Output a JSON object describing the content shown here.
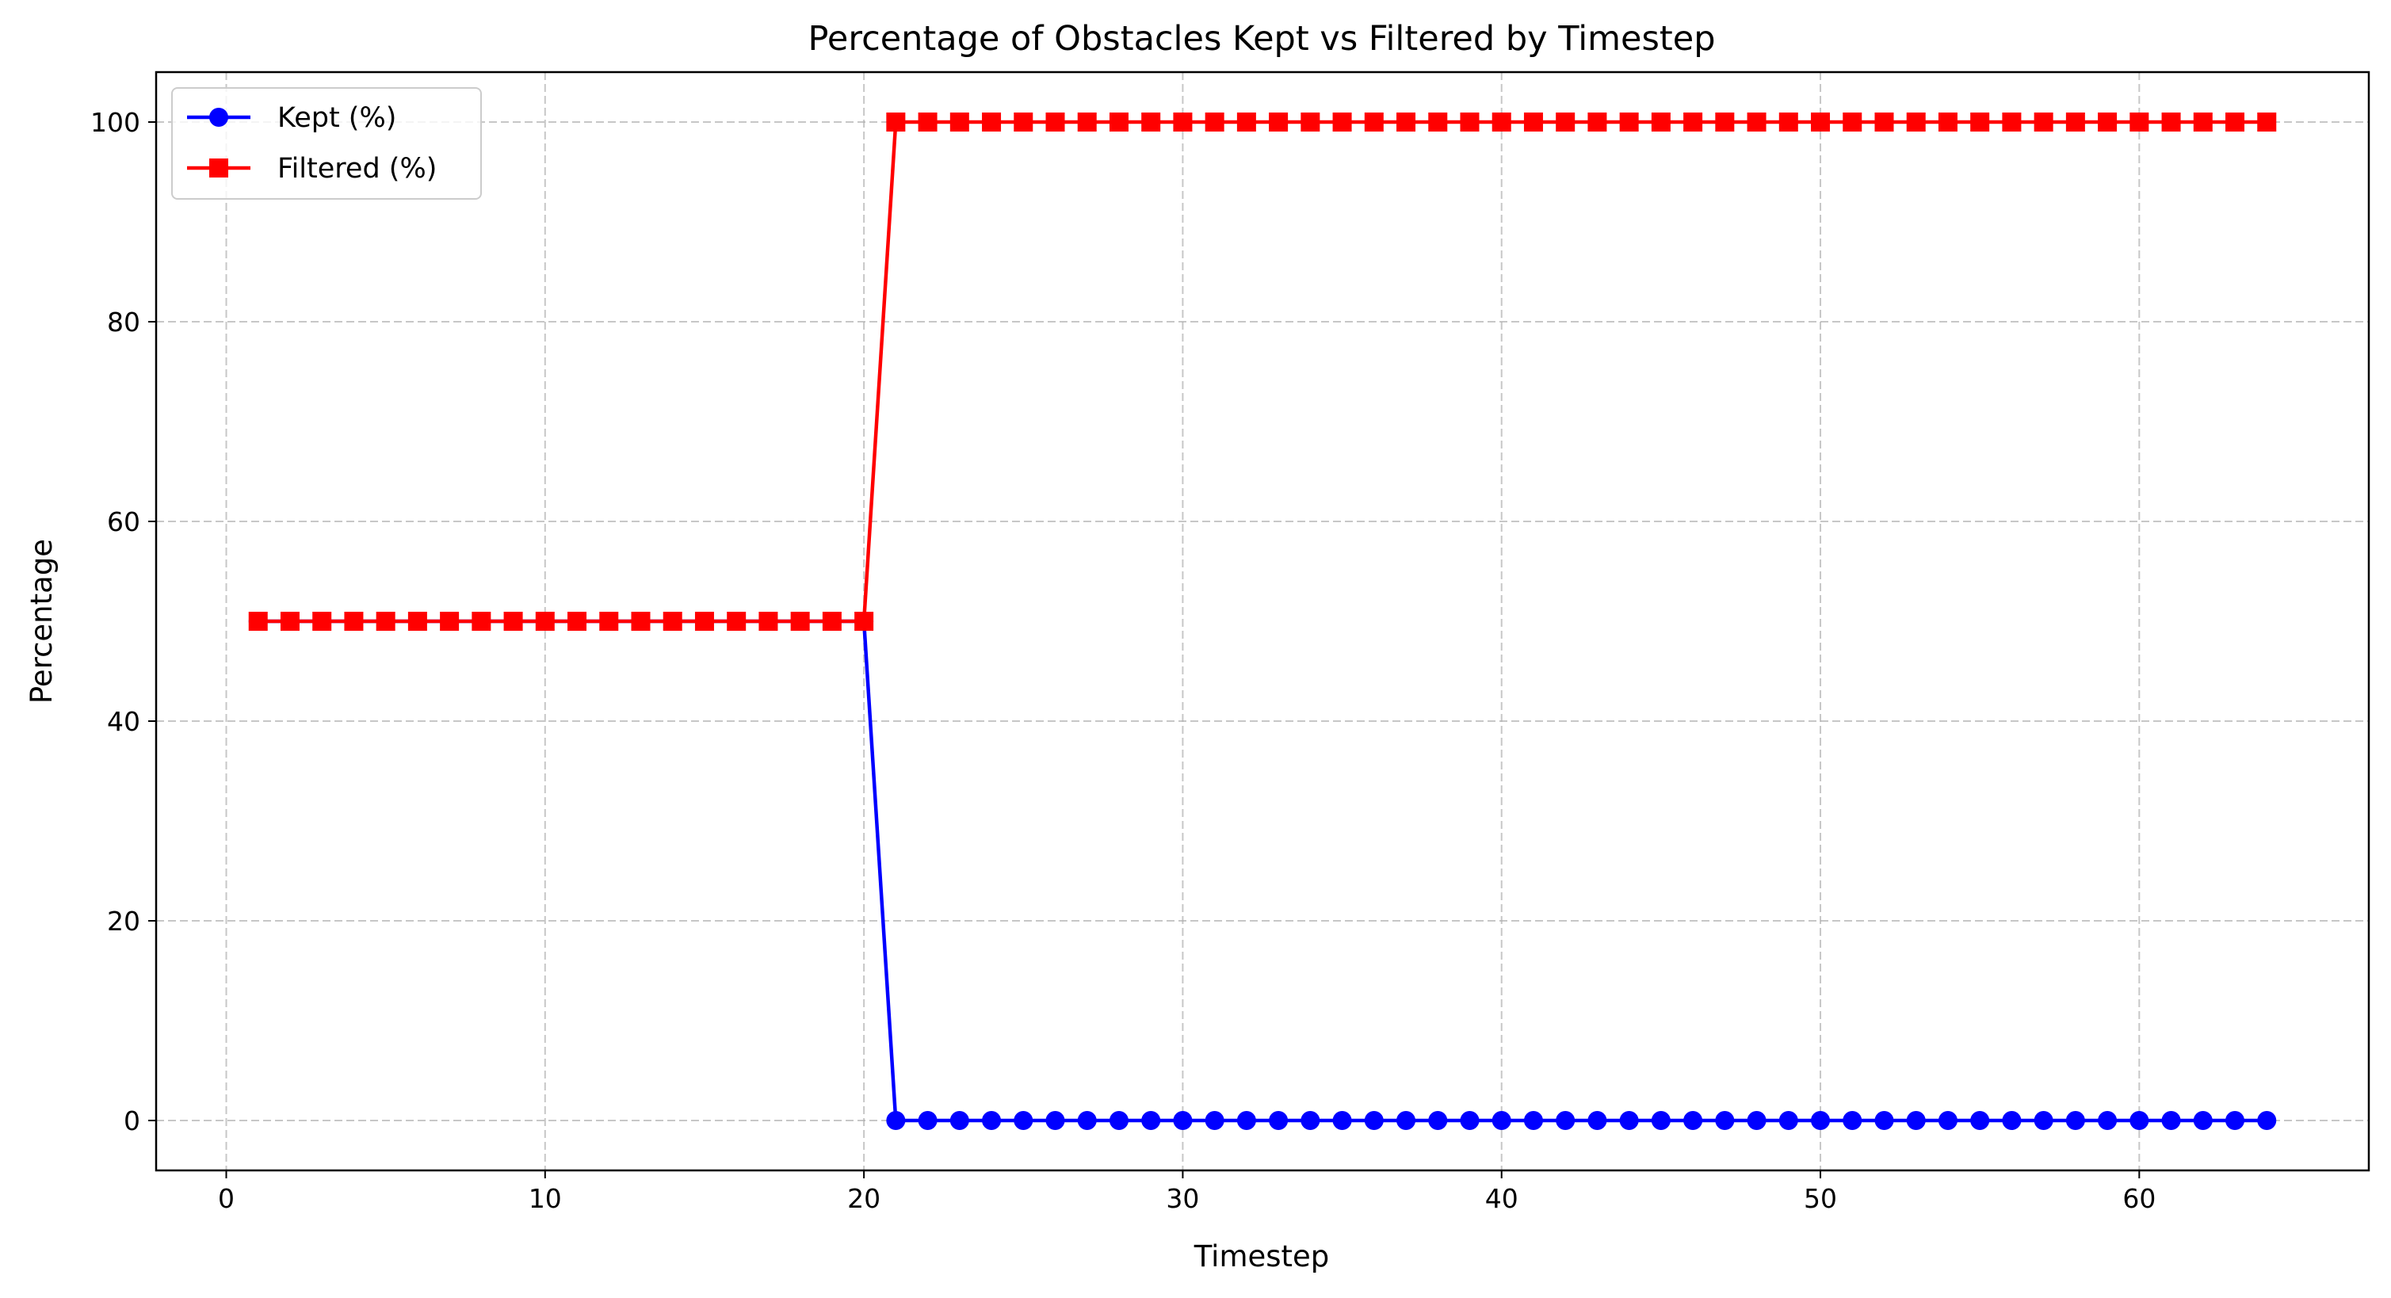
{
  "chart_data": {
    "type": "line",
    "title": "Percentage of Obstacles Kept vs Filtered by Timestep",
    "xlabel": "Timestep",
    "ylabel": "Percentage",
    "xlim": [
      -2.2,
      67.2
    ],
    "ylim": [
      -5,
      105
    ],
    "xticks": [
      0,
      10,
      20,
      30,
      40,
      50,
      60
    ],
    "yticks": [
      0,
      20,
      40,
      60,
      80,
      100
    ],
    "grid": true,
    "legend_position": "upper-left",
    "x": [
      1,
      2,
      3,
      4,
      5,
      6,
      7,
      8,
      9,
      10,
      11,
      12,
      13,
      14,
      15,
      16,
      17,
      18,
      19,
      20,
      21,
      22,
      23,
      24,
      25,
      26,
      27,
      28,
      29,
      30,
      31,
      32,
      33,
      34,
      35,
      36,
      37,
      38,
      39,
      40,
      41,
      42,
      43,
      44,
      45,
      46,
      47,
      48,
      49,
      50,
      51,
      52,
      53,
      54,
      55,
      56,
      57,
      58,
      59,
      60,
      61,
      62,
      63,
      64
    ],
    "series": [
      {
        "name": "Kept (%)",
        "color": "#0000ff",
        "marker": "circle",
        "values": [
          50,
          50,
          50,
          50,
          50,
          50,
          50,
          50,
          50,
          50,
          50,
          50,
          50,
          50,
          50,
          50,
          50,
          50,
          50,
          50,
          0,
          0,
          0,
          0,
          0,
          0,
          0,
          0,
          0,
          0,
          0,
          0,
          0,
          0,
          0,
          0,
          0,
          0,
          0,
          0,
          0,
          0,
          0,
          0,
          0,
          0,
          0,
          0,
          0,
          0,
          0,
          0,
          0,
          0,
          0,
          0,
          0,
          0,
          0,
          0,
          0,
          0,
          0,
          0
        ]
      },
      {
        "name": "Filtered (%)",
        "color": "#ff0000",
        "marker": "square",
        "values": [
          50,
          50,
          50,
          50,
          50,
          50,
          50,
          50,
          50,
          50,
          50,
          50,
          50,
          50,
          50,
          50,
          50,
          50,
          50,
          50,
          100,
          100,
          100,
          100,
          100,
          100,
          100,
          100,
          100,
          100,
          100,
          100,
          100,
          100,
          100,
          100,
          100,
          100,
          100,
          100,
          100,
          100,
          100,
          100,
          100,
          100,
          100,
          100,
          100,
          100,
          100,
          100,
          100,
          100,
          100,
          100,
          100,
          100,
          100,
          100,
          100,
          100,
          100,
          100
        ]
      }
    ]
  }
}
